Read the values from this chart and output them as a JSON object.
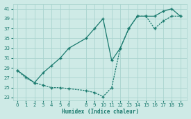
{
  "xlabel": "Humidex (Indice chaleur)",
  "background_color": "#ceeae6",
  "grid_color": "#aad4cf",
  "line_color": "#1a7a6e",
  "x_ticks": [
    0,
    1,
    2,
    3,
    4,
    5,
    6,
    8,
    9,
    10,
    11,
    12,
    13,
    14,
    15,
    16,
    17,
    18,
    19
  ],
  "ylim": [
    22.5,
    42
  ],
  "xlim": [
    -0.5,
    19.8
  ],
  "yticks": [
    23,
    25,
    27,
    29,
    31,
    33,
    35,
    37,
    39,
    41
  ],
  "curve_upper_x": [
    0,
    2,
    3,
    4,
    5,
    6,
    8,
    9,
    10,
    11,
    12,
    13,
    14,
    15,
    16,
    17,
    18,
    19
  ],
  "curve_upper_y": [
    28.5,
    26.0,
    28.0,
    29.5,
    31.0,
    33.0,
    35.0,
    37.0,
    39.0,
    30.5,
    33.0,
    37.0,
    39.5,
    39.5,
    39.5,
    40.5,
    41.0,
    39.5
  ],
  "curve_lower_x": [
    0,
    1,
    2,
    3,
    4,
    5,
    6,
    8,
    9,
    10,
    11,
    12,
    13,
    14,
    15,
    16,
    17,
    18,
    19
  ],
  "curve_lower_y": [
    28.5,
    27.0,
    26.0,
    25.5,
    25.0,
    25.0,
    24.8,
    24.4,
    24.0,
    23.2,
    25.0,
    33.0,
    37.0,
    39.5,
    39.5,
    37.0,
    38.5,
    39.5,
    39.5
  ]
}
